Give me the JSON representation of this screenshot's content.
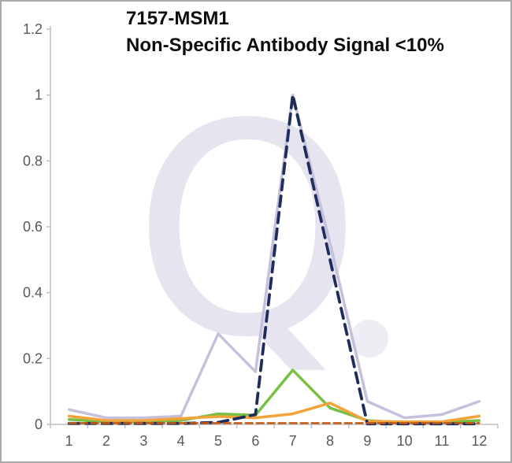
{
  "title": "7157-MSM1",
  "subtitle": "Non-Specific Antibody Signal <10%",
  "watermark": {
    "letter": "Q",
    "color": "#e5e4ef",
    "dot_color": "#ededf4"
  },
  "colors": {
    "axis": "#bfbfbf",
    "tick_label": "#595959",
    "title_text": "#0d0d0d",
    "frame_border": "#a9a9a9",
    "background": "#ffffff"
  },
  "chart_data": {
    "type": "line",
    "title": "7157-MSM1",
    "subtitle": "Non-Specific Antibody Signal <10%",
    "xlabel": "",
    "ylabel": "",
    "x": [
      "1",
      "2",
      "3",
      "4",
      "5",
      "6",
      "7",
      "8",
      "9",
      "10",
      "11",
      "12"
    ],
    "ylim": [
      0,
      1.2
    ],
    "yticks": [
      0,
      0.2,
      0.4,
      0.6,
      0.8,
      1,
      1.2
    ],
    "ytick_labels": [
      "0",
      "0.2",
      "0.4",
      "0.6",
      "0.8",
      "1",
      "1.2"
    ],
    "grid": false,
    "legend_position": "none",
    "series": [
      {
        "name": "light-purple-solid",
        "color": "#c5c1dc",
        "width": 3.5,
        "dasharray": "",
        "values": [
          0.045,
          0.02,
          0.02,
          0.025,
          0.275,
          0.16,
          1.0,
          0.55,
          0.07,
          0.02,
          0.03,
          0.07
        ]
      },
      {
        "name": "green-solid",
        "color": "#77c043",
        "width": 3.5,
        "dasharray": "",
        "values": [
          0.015,
          0.008,
          0.008,
          0.012,
          0.032,
          0.028,
          0.165,
          0.05,
          0.012,
          0.005,
          0.006,
          0.012
        ]
      },
      {
        "name": "orange-solid",
        "color": "#f2a33a",
        "width": 3.5,
        "dasharray": "",
        "values": [
          0.025,
          0.012,
          0.012,
          0.018,
          0.024,
          0.02,
          0.032,
          0.065,
          0.01,
          0.008,
          0.008,
          0.025
        ]
      },
      {
        "name": "navy-dashed",
        "color": "#1f2d5c",
        "width": 3.8,
        "dasharray": "13 8",
        "values": [
          0.003,
          0.003,
          0.003,
          0.003,
          0.006,
          0.03,
          1.0,
          0.5,
          0.002,
          0.002,
          0.002,
          0.002
        ]
      },
      {
        "name": "dark-orange-dashed",
        "color": "#c55a11",
        "width": 2.5,
        "dasharray": "9 5",
        "values": [
          0.004,
          0.004,
          0.004,
          0.004,
          0.004,
          0.004,
          0.004,
          0.004,
          0.004,
          0.004,
          0.004,
          0.004
        ]
      }
    ]
  }
}
